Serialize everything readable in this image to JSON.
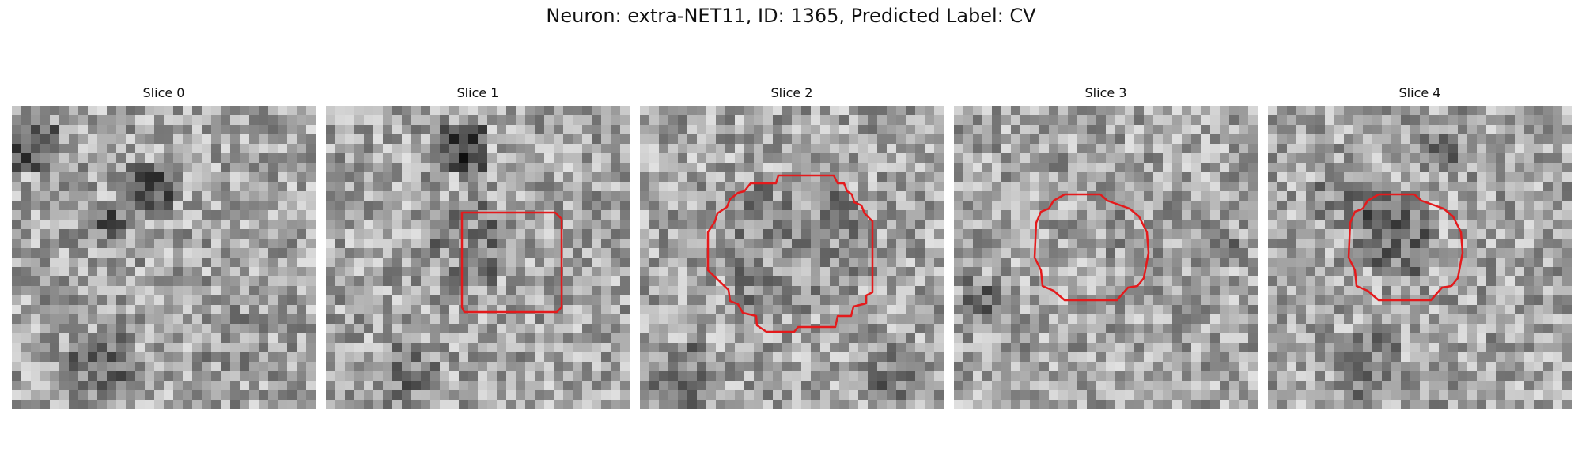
{
  "figure": {
    "title": "Neuron: extra-NET11, ID: 1365, Predicted Label: CV"
  },
  "colors": {
    "background": "#ffffff",
    "contour": "#e41a1c",
    "colormap": "grayscale"
  },
  "slices": [
    {
      "label": "Slice 0",
      "has_contour": false
    },
    {
      "label": "Slice 1",
      "has_contour": true
    },
    {
      "label": "Slice 2",
      "has_contour": true
    },
    {
      "label": "Slice 3",
      "has_contour": true
    },
    {
      "label": "Slice 4",
      "has_contour": true
    }
  ]
}
